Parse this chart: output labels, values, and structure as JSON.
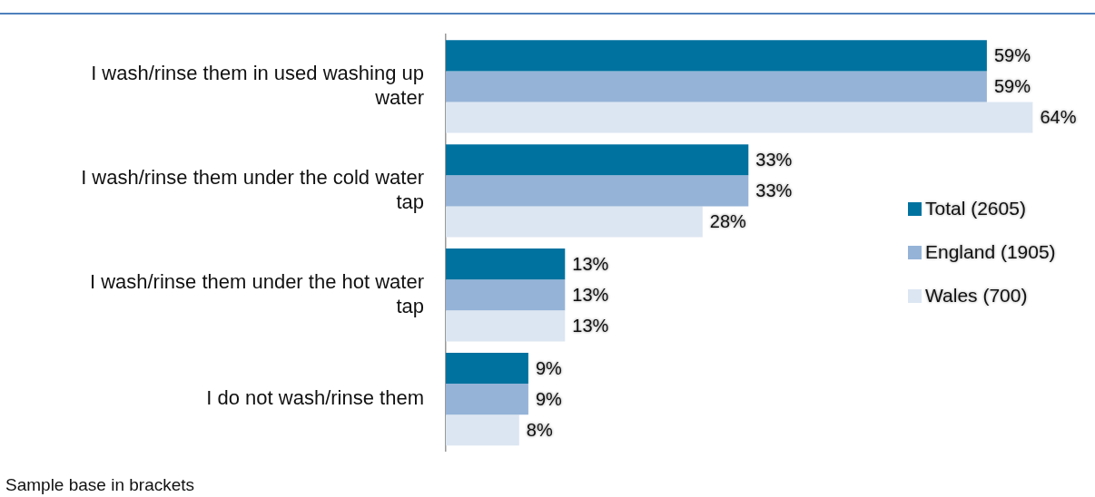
{
  "chart_data": {
    "type": "bar",
    "orientation": "horizontal",
    "categories": [
      "I wash/rinse them in used washing up water",
      "I wash/rinse them under the cold water tap",
      "I wash/rinse them under the hot water tap",
      "I do not wash/rinse them"
    ],
    "series": [
      {
        "name": "Total (2605)",
        "color": "#00729f",
        "values": [
          59,
          33,
          13,
          9
        ],
        "value_labels": [
          "59%",
          "33%",
          "13%",
          "9%"
        ]
      },
      {
        "name": "England (1905)",
        "color": "#95b3d7",
        "values": [
          59,
          33,
          13,
          9
        ],
        "value_labels": [
          "59%",
          "33%",
          "13%",
          "9%"
        ]
      },
      {
        "name": "Wales (700)",
        "color": "#dce6f2",
        "values": [
          64,
          28,
          13,
          8
        ],
        "value_labels": [
          "64%",
          "28%",
          "13%",
          "8%"
        ]
      }
    ],
    "legend": "right",
    "grid": false,
    "tick_labels": "y",
    "annotations": [
      "Sample base in brackets"
    ]
  }
}
